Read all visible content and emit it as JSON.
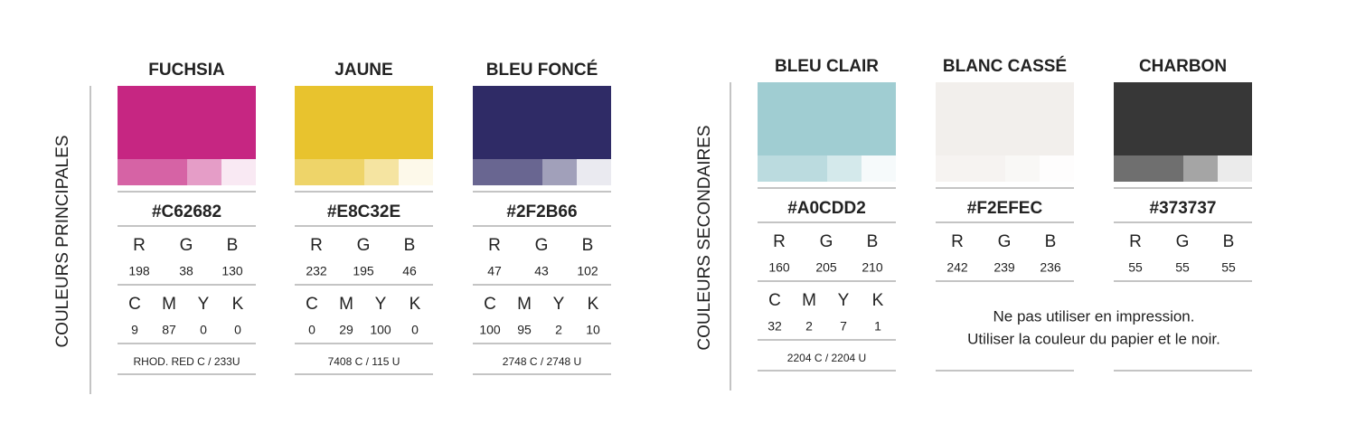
{
  "rgb_labels": [
    "R",
    "G",
    "B"
  ],
  "cmyk_labels": [
    "C",
    "M",
    "Y",
    "K"
  ],
  "groups": [
    {
      "label": "COULEURS PRINCIPALES",
      "colors": [
        {
          "name": "FUCHSIA",
          "hex": "#C62682",
          "rgb": [
            198,
            38,
            130
          ],
          "cmyk": [
            9,
            87,
            0,
            0
          ],
          "pantone": "RHOD. RED C / 233U"
        },
        {
          "name": "JAUNE",
          "hex": "#E8C32E",
          "rgb": [
            232,
            195,
            46
          ],
          "cmyk": [
            0,
            29,
            100,
            0
          ],
          "pantone": "7408 C / 115 U"
        },
        {
          "name": "BLEU FONCÉ",
          "hex": "#2F2B66",
          "rgb": [
            47,
            43,
            102
          ],
          "cmyk": [
            100,
            95,
            2,
            10
          ],
          "pantone": "2748 C / 2748 U"
        }
      ]
    },
    {
      "label": "COULEURS SECONDAIRES",
      "colors": [
        {
          "name": "BLEU CLAIR",
          "hex": "#A0CDD2",
          "rgb": [
            160,
            205,
            210
          ],
          "cmyk": [
            32,
            2,
            7,
            1
          ],
          "pantone": "2204 C / 2204 U"
        },
        {
          "name": "BLANC CASSÉ",
          "hex": "#F2EFEC",
          "rgb": [
            242,
            239,
            236
          ]
        },
        {
          "name": "CHARBON",
          "hex": "#373737",
          "rgb": [
            55,
            55,
            55
          ]
        }
      ],
      "note": [
        "Ne pas utiliser en impression.",
        "Utiliser la couleur du papier et le noir."
      ]
    }
  ]
}
